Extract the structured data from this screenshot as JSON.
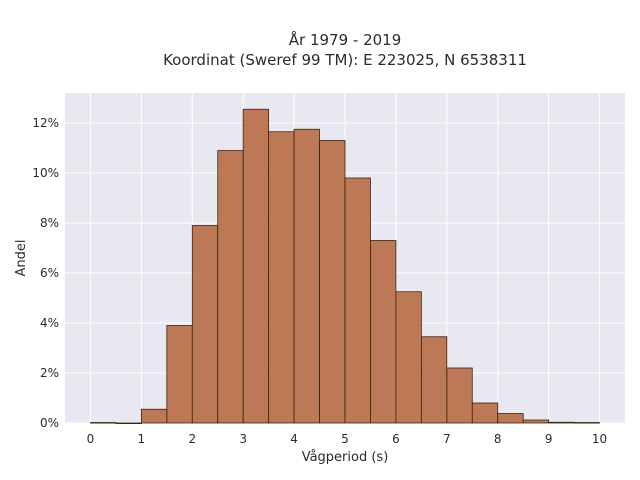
{
  "chart_data": {
    "type": "bar",
    "title_lines": [
      "År 1979 - 2019",
      "Koordinat (Sweref 99 TM): E 223025, N 6538311"
    ],
    "xlabel": "Vågperiod (s)",
    "ylabel": "Andel",
    "xlim": [
      -0.5,
      10.5
    ],
    "ylim": [
      0,
      13.2
    ],
    "x_ticks": [
      0,
      1,
      2,
      3,
      4,
      5,
      6,
      7,
      8,
      9,
      10
    ],
    "x_tick_labels": [
      "0",
      "1",
      "2",
      "3",
      "4",
      "5",
      "6",
      "7",
      "8",
      "9",
      "10"
    ],
    "y_ticks": [
      0,
      2,
      4,
      6,
      8,
      10,
      12
    ],
    "y_tick_labels": [
      "0%",
      "2%",
      "4%",
      "6%",
      "8%",
      "10%",
      "12%"
    ],
    "bin_width": 0.5,
    "bin_starts": [
      0,
      0.5,
      1,
      1.5,
      2,
      2.5,
      3,
      3.5,
      4,
      4.5,
      5,
      5.5,
      6,
      6.5,
      7,
      7.5,
      8,
      8.5,
      9,
      9.5
    ],
    "values": [
      0.02,
      0,
      0.55,
      3.9,
      7.9,
      10.9,
      12.55,
      11.65,
      11.75,
      11.3,
      9.8,
      7.3,
      5.25,
      3.45,
      2.2,
      0.8,
      0.38,
      0.12,
      0.03,
      0.02
    ],
    "grid": true,
    "colors": {
      "bar_fill": "#b5653a",
      "bar_edge": "#3b2414",
      "plot_background": "#e8e8f1",
      "grid": "#ffffff"
    }
  }
}
